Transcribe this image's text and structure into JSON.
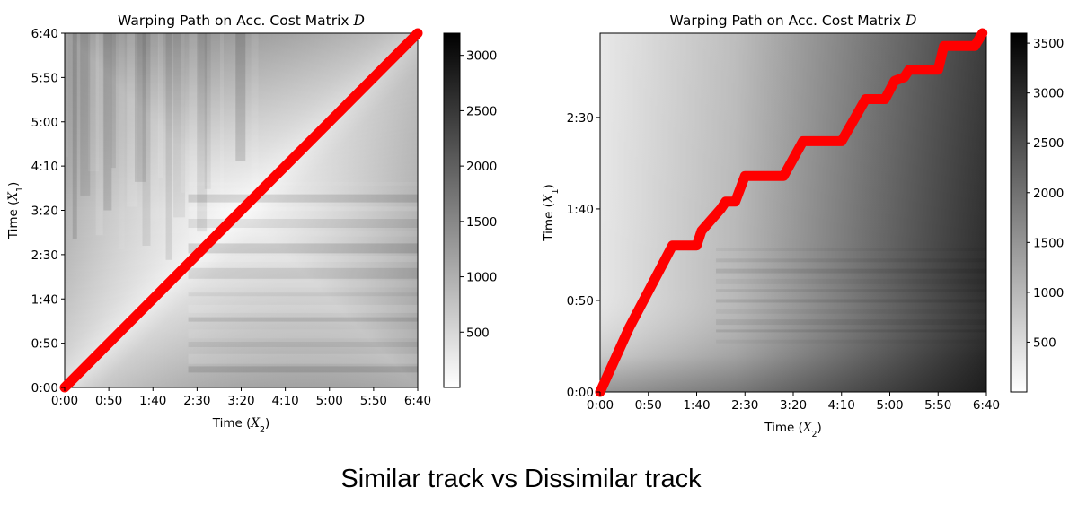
{
  "caption": "Similar track vs Dissimilar track",
  "chart_data": [
    {
      "type": "heatmap",
      "title_prefix": "Warping Path on Acc. Cost Matrix ",
      "title_var": "D",
      "xlabel_prefix": "Time (",
      "xlabel_var": "X",
      "xlabel_sub": "2",
      "ylabel_prefix": "Time (",
      "ylabel_var": "X",
      "ylabel_sub": "1",
      "xlim": [
        0,
        400
      ],
      "ylim": [
        0,
        400
      ],
      "x_ticks": [
        {
          "value": 0,
          "label": "0:00"
        },
        {
          "value": 50,
          "label": "0:50"
        },
        {
          "value": 100,
          "label": "1:40"
        },
        {
          "value": 150,
          "label": "2:30"
        },
        {
          "value": 200,
          "label": "3:20"
        },
        {
          "value": 250,
          "label": "4:10"
        },
        {
          "value": 300,
          "label": "5:00"
        },
        {
          "value": 350,
          "label": "5:50"
        },
        {
          "value": 400,
          "label": "6:40"
        }
      ],
      "y_ticks": [
        {
          "value": 0,
          "label": "0:00"
        },
        {
          "value": 50,
          "label": "0:50"
        },
        {
          "value": 100,
          "label": "1:40"
        },
        {
          "value": 150,
          "label": "2:30"
        },
        {
          "value": 200,
          "label": "3:20"
        },
        {
          "value": 250,
          "label": "4:10"
        },
        {
          "value": 300,
          "label": "5:00"
        },
        {
          "value": 350,
          "label": "5:50"
        },
        {
          "value": 400,
          "label": "6:40"
        }
      ],
      "colorbar": {
        "min": 0,
        "max": 3200,
        "ticks": [
          500,
          1000,
          1500,
          2000,
          2500,
          3000
        ],
        "colormap": "gray_r"
      },
      "path_color": "#ff0000",
      "path": [
        [
          0,
          0
        ],
        [
          50,
          50
        ],
        [
          100,
          100
        ],
        [
          150,
          150
        ],
        [
          200,
          200
        ],
        [
          250,
          250
        ],
        [
          300,
          300
        ],
        [
          350,
          350
        ],
        [
          400,
          400
        ]
      ]
    },
    {
      "type": "heatmap",
      "title_prefix": "Warping Path on Acc. Cost Matrix ",
      "title_var": "D",
      "xlabel_prefix": "Time (",
      "xlabel_var": "X",
      "xlabel_sub": "2",
      "ylabel_prefix": "Time (",
      "ylabel_var": "X",
      "ylabel_sub": "1",
      "xlim": [
        0,
        400
      ],
      "ylim": [
        0,
        196
      ],
      "x_ticks": [
        {
          "value": 0,
          "label": "0:00"
        },
        {
          "value": 50,
          "label": "0:50"
        },
        {
          "value": 100,
          "label": "1:40"
        },
        {
          "value": 150,
          "label": "2:30"
        },
        {
          "value": 200,
          "label": "3:20"
        },
        {
          "value": 250,
          "label": "4:10"
        },
        {
          "value": 300,
          "label": "5:00"
        },
        {
          "value": 350,
          "label": "5:50"
        },
        {
          "value": 400,
          "label": "6:40"
        }
      ],
      "y_ticks": [
        {
          "value": 0,
          "label": "0:00"
        },
        {
          "value": 50,
          "label": "0:50"
        },
        {
          "value": 100,
          "label": "1:40"
        },
        {
          "value": 150,
          "label": "2:30"
        }
      ],
      "colorbar": {
        "min": 0,
        "max": 3600,
        "ticks": [
          500,
          1000,
          1500,
          2000,
          2500,
          3000,
          3500
        ],
        "colormap": "gray_r"
      },
      "path_color": "#ff0000",
      "path": [
        [
          0,
          0
        ],
        [
          30,
          35
        ],
        [
          75,
          80
        ],
        [
          100,
          80
        ],
        [
          105,
          88
        ],
        [
          125,
          100
        ],
        [
          130,
          104
        ],
        [
          140,
          104
        ],
        [
          150,
          118
        ],
        [
          190,
          118
        ],
        [
          210,
          137
        ],
        [
          250,
          137
        ],
        [
          275,
          160
        ],
        [
          295,
          160
        ],
        [
          305,
          170
        ],
        [
          315,
          172
        ],
        [
          320,
          176
        ],
        [
          350,
          176
        ],
        [
          356,
          189
        ],
        [
          388,
          189
        ],
        [
          396,
          196
        ]
      ]
    }
  ]
}
